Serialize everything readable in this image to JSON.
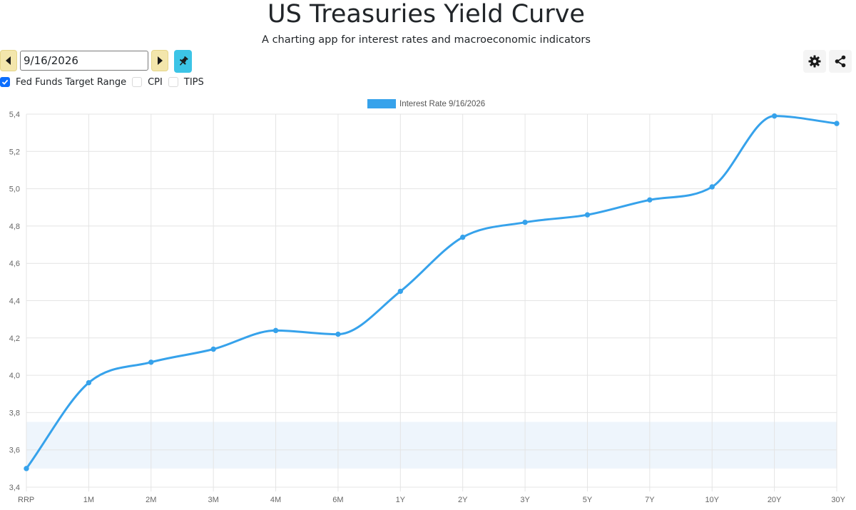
{
  "header": {
    "title": "US Treasuries Yield Curve",
    "subtitle": "A charting app for interest rates and macroeconomic indicators"
  },
  "toolbar": {
    "date_value": "9/16/2026",
    "prev_icon": "caret-left-icon",
    "next_icon": "caret-right-icon",
    "pin_icon": "pin-icon",
    "settings_icon": "gear-icon",
    "share_icon": "share-icon"
  },
  "options": [
    {
      "label": "Fed Funds Target Range",
      "checked": true
    },
    {
      "label": "CPI",
      "checked": false
    },
    {
      "label": "TIPS",
      "checked": false
    }
  ],
  "colors": {
    "series": "#36a2eb",
    "legend_swatch": "#36a2eb",
    "fed_band": "#eef5fc",
    "pin_button": "#3cc4e6",
    "nav_button": "#f3e6ac",
    "checkbox": "#0d6efd"
  },
  "chart_data": {
    "type": "line",
    "categories": [
      "RRP",
      "1M",
      "2M",
      "3M",
      "4M",
      "6M",
      "1Y",
      "2Y",
      "3Y",
      "5Y",
      "7Y",
      "10Y",
      "20Y",
      "30Y"
    ],
    "series": [
      {
        "name": "Interest Rate 9/16/2026",
        "values": [
          3.5,
          3.96,
          4.07,
          4.14,
          4.24,
          4.22,
          4.45,
          4.74,
          4.82,
          4.86,
          4.94,
          5.01,
          5.39,
          5.35
        ]
      }
    ],
    "fed_funds_target_range": [
      3.5,
      3.75
    ],
    "ylim": [
      3.4,
      5.4
    ],
    "yticks": [
      "3,4",
      "3,6",
      "3,8",
      "4,0",
      "4,2",
      "4,4",
      "4,6",
      "4,8",
      "5,0",
      "5,2",
      "5,4"
    ],
    "ytick_values": [
      3.4,
      3.6,
      3.8,
      4.0,
      4.2,
      4.4,
      4.6,
      4.8,
      5.0,
      5.2,
      5.4
    ],
    "grid": true,
    "legend_position": "top-center",
    "title": "",
    "xlabel": "",
    "ylabel": ""
  }
}
